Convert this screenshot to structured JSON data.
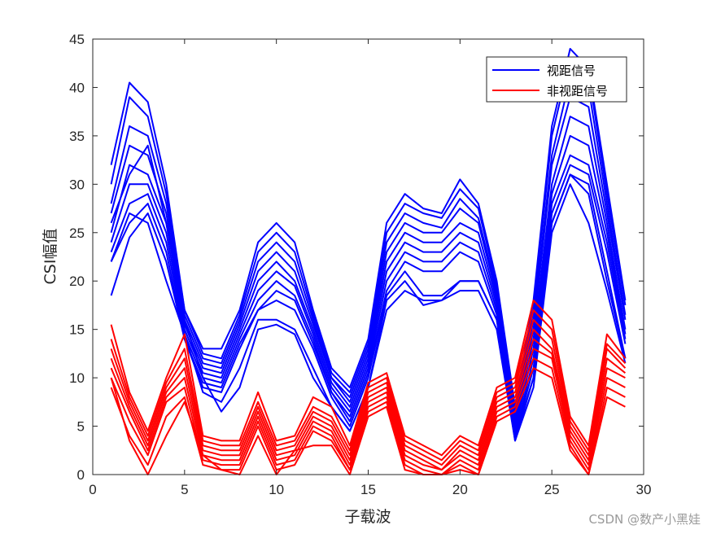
{
  "chart_data": {
    "type": "line",
    "xlabel": "子载波",
    "ylabel": "CSI幅值",
    "xlim": [
      0,
      30
    ],
    "ylim": [
      0,
      45
    ],
    "xticks": [
      0,
      5,
      10,
      15,
      20,
      25,
      30
    ],
    "yticks": [
      0,
      5,
      10,
      15,
      20,
      25,
      30,
      35,
      40,
      45
    ],
    "legend_position": "top-right",
    "grid": false,
    "x": [
      1,
      2,
      3,
      4,
      5,
      6,
      7,
      8,
      9,
      10,
      11,
      12,
      13,
      14,
      15,
      16,
      17,
      18,
      19,
      20,
      21,
      22,
      23,
      24,
      25,
      26,
      27,
      28,
      29
    ],
    "series": [
      {
        "name": "视距信号",
        "color": "#0000ff",
        "lines": [
          [
            32,
            40.5,
            38.5,
            30,
            17,
            13,
            13,
            17,
            24,
            26,
            24,
            17,
            11,
            9,
            14,
            26,
            29,
            27.5,
            27,
            30.5,
            28,
            20,
            7,
            18,
            36,
            44,
            42,
            30,
            18
          ],
          [
            30,
            39,
            37,
            29,
            17,
            12.5,
            12,
            16.5,
            23,
            25,
            23,
            16.5,
            10.5,
            8.5,
            13.5,
            25,
            28,
            27,
            26.5,
            29.5,
            27.5,
            19.5,
            6.5,
            17,
            35,
            43,
            41.5,
            29,
            17.5
          ],
          [
            28,
            36,
            35,
            28,
            16.5,
            12,
            11.5,
            16,
            22,
            24,
            22,
            16,
            10,
            8,
            13,
            24,
            27,
            26,
            25.5,
            28.5,
            26.5,
            19,
            6,
            16,
            33,
            41,
            40,
            28,
            16.5
          ],
          [
            27,
            34,
            33,
            27,
            16,
            11.5,
            11,
            15.5,
            21,
            23,
            21,
            15.5,
            10,
            7.5,
            12.5,
            23,
            26,
            25,
            25,
            27.5,
            26,
            18.5,
            5.5,
            15,
            32,
            39,
            38,
            27,
            16
          ],
          [
            25,
            32,
            31,
            26,
            15.5,
            11,
            10.5,
            15,
            20,
            22,
            20,
            15,
            9.5,
            7,
            12,
            22,
            25,
            24,
            24,
            26,
            25,
            18,
            5,
            14,
            30,
            37,
            36,
            26,
            15
          ],
          [
            24,
            30,
            30,
            25,
            15,
            10.5,
            10,
            14.5,
            19,
            21,
            19.5,
            14.5,
            9,
            6.5,
            11.5,
            21,
            24,
            23,
            23,
            25,
            24,
            17.5,
            4.5,
            13,
            29,
            35,
            34,
            25,
            14.5
          ],
          [
            23,
            28,
            29,
            24,
            14.5,
            10,
            9.5,
            14,
            18,
            20,
            18.5,
            14,
            8.5,
            6,
            11,
            20,
            23,
            22,
            22,
            24,
            23,
            17,
            4,
            12,
            28,
            33,
            32,
            24,
            14
          ],
          [
            22,
            26,
            28,
            23,
            14,
            9.5,
            9,
            13.5,
            17,
            19,
            18,
            13.5,
            8.5,
            5.5,
            10.5,
            19,
            22,
            21,
            21,
            23,
            22,
            16.5,
            4,
            11,
            27,
            32,
            31,
            23,
            13.5
          ],
          [
            18.5,
            24.5,
            27,
            22,
            14,
            9,
            8.5,
            13,
            17,
            18,
            17,
            13,
            8,
            5,
            10,
            18.5,
            21,
            18.5,
            18.5,
            20,
            20,
            16,
            3.5,
            10,
            26,
            31,
            30,
            21,
            12
          ],
          [
            22,
            27,
            26,
            20,
            14.5,
            8.5,
            7.5,
            11,
            16,
            16,
            15,
            11,
            7,
            4.5,
            9,
            18,
            20,
            17.5,
            18,
            19,
            19,
            15,
            3.5,
            9,
            25,
            30,
            26,
            19,
            11.5
          ],
          [
            26,
            31,
            34,
            26,
            16,
            10,
            6.5,
            9,
            15,
            15.5,
            14.5,
            10,
            7,
            4.5,
            9,
            17,
            19,
            18,
            18,
            20,
            20,
            16,
            4,
            10,
            26,
            31,
            29,
            20,
            12
          ]
        ]
      },
      {
        "name": "非视距信号",
        "color": "#ff0000",
        "lines": [
          [
            15.5,
            8.5,
            4.5,
            10,
            14.5,
            4,
            3.5,
            3.5,
            8.5,
            3.5,
            4,
            8,
            7,
            3,
            9.5,
            10.5,
            4,
            3,
            2,
            4,
            3,
            9,
            10,
            18,
            16,
            6,
            3,
            14.5,
            12
          ],
          [
            14,
            8,
            4,
            9.5,
            13,
            3.5,
            3,
            3,
            7.5,
            3,
            3.5,
            7,
            6,
            2.5,
            9,
            10,
            3.5,
            2.5,
            1.5,
            3.5,
            2.5,
            8.5,
            9.5,
            17,
            15,
            5.5,
            2.5,
            13.5,
            11.5
          ],
          [
            13,
            7.5,
            3.5,
            9,
            12,
            3,
            2.5,
            2.5,
            7,
            2.5,
            3,
            6.5,
            5.5,
            2,
            8.5,
            9.5,
            3,
            2,
            1,
            3,
            2,
            8,
            9,
            16,
            14,
            5,
            2,
            13,
            11
          ],
          [
            12,
            7,
            3,
            8.5,
            11,
            2.5,
            2,
            2,
            6.5,
            2,
            2.5,
            6,
            5,
            1.5,
            8,
            9,
            2.5,
            1.5,
            0.5,
            2.5,
            1.5,
            7.5,
            8.5,
            15,
            13,
            4.5,
            1.5,
            12,
            10.5
          ],
          [
            11,
            6.5,
            2.5,
            8,
            10,
            2,
            1.5,
            1.5,
            6,
            1.5,
            2,
            5.5,
            4.5,
            1,
            7.5,
            8.5,
            2,
            1,
            0.5,
            2,
            1,
            7,
            8,
            14,
            12.5,
            4,
            1,
            11,
            10
          ],
          [
            10,
            5.5,
            2,
            7.5,
            9,
            1.5,
            1,
            1,
            5.5,
            1,
            1.5,
            5,
            4,
            0.5,
            7,
            8,
            1.5,
            0.5,
            0,
            1.5,
            0.5,
            6.5,
            7.5,
            13,
            12,
            3.5,
            0.5,
            10,
            9
          ],
          [
            9,
            4,
            1,
            6,
            8,
            1,
            0.5,
            0.5,
            5,
            0.5,
            1,
            4.5,
            3.5,
            0.5,
            6.5,
            7.5,
            1,
            0,
            0,
            1,
            0,
            6,
            7,
            12,
            11,
            3,
            0,
            9,
            8
          ],
          [
            10,
            3.5,
            0,
            4,
            7.5,
            2,
            0.5,
            0,
            4,
            0,
            2.5,
            3,
            3,
            0,
            6,
            7,
            0.5,
            0,
            0,
            0.5,
            0,
            5.5,
            6.5,
            11,
            10,
            2.5,
            0,
            8,
            7
          ]
        ]
      }
    ]
  },
  "watermark": "CSDN @数产小黑娃"
}
